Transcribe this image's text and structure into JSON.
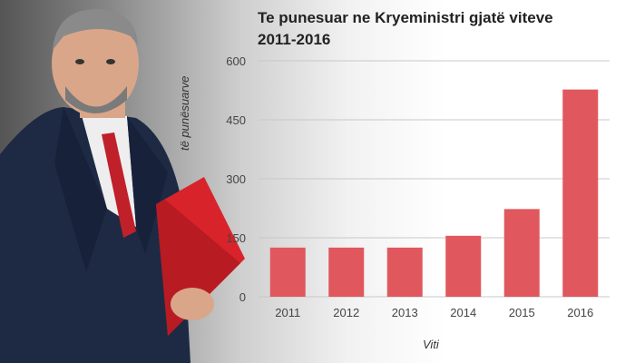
{
  "chart_data": {
    "type": "bar",
    "title_line1": "Te punesuar ne Kryeministri gjatë viteve",
    "title_line2": "2011-2016",
    "xlabel": "Viti",
    "ylabel": "të punësuarve",
    "categories": [
      "2011",
      "2012",
      "2013",
      "2014",
      "2015",
      "2016"
    ],
    "values": [
      125,
      125,
      125,
      155,
      223,
      527
    ],
    "ylim": [
      0,
      600
    ],
    "yticks": [
      0,
      150,
      300,
      450,
      600
    ],
    "bar_color": "#e0585e",
    "grid": true
  }
}
